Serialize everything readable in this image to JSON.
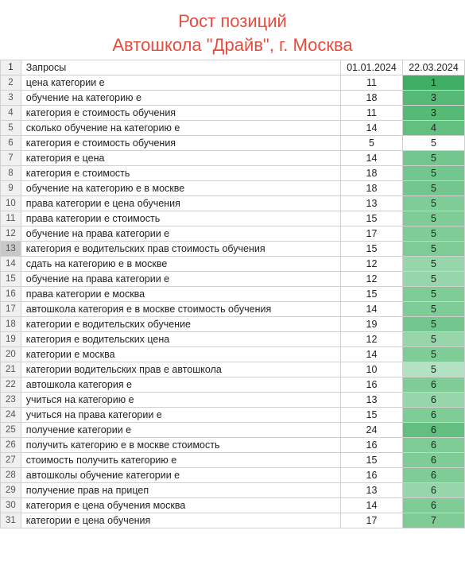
{
  "title_line1": "Рост позиций",
  "title_line2": "Автошкола \"Драйв\", г. Москва",
  "title_color": "#e74c3c",
  "header": {
    "row_num": "1",
    "query_label": "Запросы",
    "date1": "01.01.2024",
    "date2": "22.03.2024"
  },
  "green_scale": {
    "min_color": "#ffffff",
    "max_color": "#5fbe7d"
  },
  "rows": [
    {
      "n": "2",
      "q": "цена категории е",
      "v1": "11",
      "v2": "1",
      "bg": "#3fad63"
    },
    {
      "n": "3",
      "q": "обучение на категорию е",
      "v1": "18",
      "v2": "3",
      "bg": "#56b976"
    },
    {
      "n": "4",
      "q": "категория е стоимость обучения",
      "v1": "11",
      "v2": "3",
      "bg": "#56b976"
    },
    {
      "n": "5",
      "q": "сколько обучение на категорию е",
      "v1": "14",
      "v2": "4",
      "bg": "#62bf80"
    },
    {
      "n": "6",
      "q": "категория е стоимость обучения",
      "v1": "5",
      "v2": "5",
      "bg": "#ffffff"
    },
    {
      "n": "7",
      "q": "категория е цена",
      "v1": "14",
      "v2": "5",
      "bg": "#73c78e"
    },
    {
      "n": "8",
      "q": "категория е стоимость",
      "v1": "18",
      "v2": "5",
      "bg": "#73c78e"
    },
    {
      "n": "9",
      "q": "обучение на категорию е в москве",
      "v1": "18",
      "v2": "5",
      "bg": "#73c78e"
    },
    {
      "n": "10",
      "q": "права категории е цена обучения",
      "v1": "13",
      "v2": "5",
      "bg": "#7fcc97"
    },
    {
      "n": "11",
      "q": "права категории е стоимость",
      "v1": "15",
      "v2": "5",
      "bg": "#7fcc97"
    },
    {
      "n": "12",
      "q": "обучение на права категории е",
      "v1": "17",
      "v2": "5",
      "bg": "#7fcc97"
    },
    {
      "n": "13",
      "q": "категория е водительских прав стоимость обучения",
      "v1": "15",
      "v2": "5",
      "bg": "#7fcc97",
      "sel": true
    },
    {
      "n": "14",
      "q": "сдать на категорию е в москве",
      "v1": "12",
      "v2": "5",
      "bg": "#96d6aa"
    },
    {
      "n": "15",
      "q": "обучение на права категории е",
      "v1": "12",
      "v2": "5",
      "bg": "#96d6aa"
    },
    {
      "n": "16",
      "q": "права категории е москва",
      "v1": "15",
      "v2": "5",
      "bg": "#7fcc97"
    },
    {
      "n": "17",
      "q": "автошкола категория е в москве стоимость обучения",
      "v1": "14",
      "v2": "5",
      "bg": "#7fcc97"
    },
    {
      "n": "18",
      "q": "категории е водительских обучение",
      "v1": "19",
      "v2": "5",
      "bg": "#73c78e"
    },
    {
      "n": "19",
      "q": "категория е водительских цена",
      "v1": "12",
      "v2": "5",
      "bg": "#96d6aa"
    },
    {
      "n": "20",
      "q": "категории е москва",
      "v1": "14",
      "v2": "5",
      "bg": "#7fcc97"
    },
    {
      "n": "21",
      "q": "категории водительских прав е автошкола",
      "v1": "10",
      "v2": "5",
      "bg": "#b2e2c1"
    },
    {
      "n": "22",
      "q": "автошкола категория е",
      "v1": "16",
      "v2": "6",
      "bg": "#7fcc97"
    },
    {
      "n": "23",
      "q": "учиться на категорию е",
      "v1": "13",
      "v2": "6",
      "bg": "#96d6aa"
    },
    {
      "n": "24",
      "q": "учиться на права категории е",
      "v1": "15",
      "v2": "6",
      "bg": "#7fcc97"
    },
    {
      "n": "25",
      "q": "получение категории е",
      "v1": "24",
      "v2": "6",
      "bg": "#62bf80"
    },
    {
      "n": "26",
      "q": "получить категорию е в москве стоимость",
      "v1": "16",
      "v2": "6",
      "bg": "#7fcc97"
    },
    {
      "n": "27",
      "q": "стоимость получить категорию е",
      "v1": "15",
      "v2": "6",
      "bg": "#7fcc97"
    },
    {
      "n": "28",
      "q": "автошколы обучение категории е",
      "v1": "16",
      "v2": "6",
      "bg": "#7fcc97"
    },
    {
      "n": "29",
      "q": "получение прав на прицеп",
      "v1": "13",
      "v2": "6",
      "bg": "#96d6aa"
    },
    {
      "n": "30",
      "q": "категория е цена обучения москва",
      "v1": "14",
      "v2": "6",
      "bg": "#7fcc97"
    },
    {
      "n": "31",
      "q": "категории е цена обучения",
      "v1": "17",
      "v2": "7",
      "bg": "#7fcc97"
    }
  ]
}
